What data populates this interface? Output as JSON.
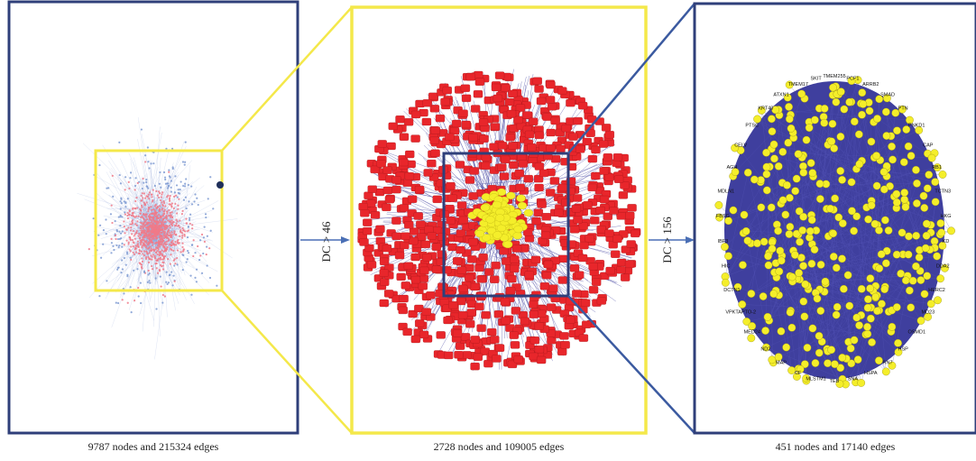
{
  "panels": [
    {
      "caption": "9787 nodes and 215324 edges"
    },
    {
      "caption": "2728 nodes and 109005 edges"
    },
    {
      "caption": "451 nodes and 17140 edges"
    }
  ],
  "arrows": [
    {
      "label": "DC > 46"
    },
    {
      "label": "DC > 156"
    }
  ],
  "node_labels": [
    "TMEM255",
    "PCF1",
    "ARRB2",
    "SMAD",
    "PTN",
    "PNKD1",
    "CAP",
    "RB1",
    "TCTN3",
    "HKG",
    "KD",
    "DDA2",
    "HERC2",
    "MD23",
    "OSMD1",
    "HSP",
    "RN7",
    "HSPA",
    "SNA",
    "TEB",
    "MLSTM1",
    "CF",
    "MAP",
    "ND2",
    "MED24",
    "VPKTAPTO-2",
    "DCTN1",
    "HIC",
    "IBF3",
    "FBSG",
    "MDLN1",
    "AGH",
    "CELV",
    "PTSC",
    "KRT40",
    "ATXN1",
    "TMEM17",
    "SKIT"
  ],
  "colors": {
    "frame_blue": "#2f3f7a",
    "frame_yellow": "#f4e84a",
    "arrow_blue": "#4a6fb5",
    "node_red": "#e8262b",
    "node_yellow": "#f4ee2a",
    "edge_blue": "#3a3a9c",
    "edge_light_blue": "#8fa3d6",
    "node_pink": "#f07a88"
  }
}
